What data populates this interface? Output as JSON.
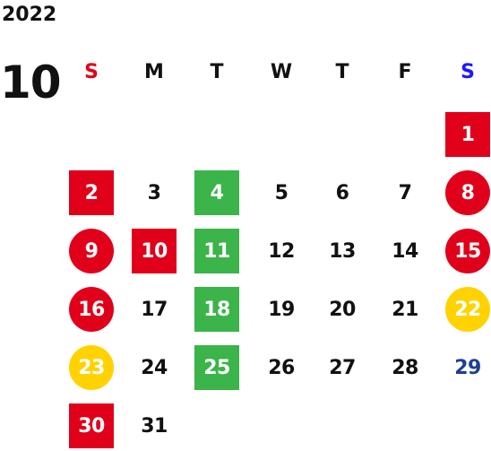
{
  "year": "2022",
  "month": "10",
  "colors": {
    "text": "#111111",
    "holiday_red": "#e0001a",
    "event_green": "#3bb44a",
    "highlight_yellow": "#ffd200",
    "sunday_red": "#e0001a",
    "saturday_blue": "#1a1aff",
    "navy_text": "#1f3f8f"
  },
  "weekdays": [
    {
      "label": "S",
      "color": "#e0001a"
    },
    {
      "label": "M",
      "color": "#111111"
    },
    {
      "label": "T",
      "color": "#111111"
    },
    {
      "label": "W",
      "color": "#111111"
    },
    {
      "label": "T",
      "color": "#111111"
    },
    {
      "label": "F",
      "color": "#111111"
    },
    {
      "label": "S",
      "color": "#1a1aff"
    }
  ],
  "days": [
    {
      "day": "1",
      "marker": "red-square",
      "text_color": "#ffffff"
    },
    {
      "day": "2",
      "marker": "red-square",
      "text_color": "#ffffff"
    },
    {
      "day": "3",
      "marker": "none",
      "text_color": "#111111"
    },
    {
      "day": "4",
      "marker": "green-square",
      "text_color": "#ffffff"
    },
    {
      "day": "5",
      "marker": "none",
      "text_color": "#111111"
    },
    {
      "day": "6",
      "marker": "none",
      "text_color": "#111111"
    },
    {
      "day": "7",
      "marker": "none",
      "text_color": "#111111"
    },
    {
      "day": "8",
      "marker": "red-circle",
      "text_color": "#ffffff"
    },
    {
      "day": "9",
      "marker": "red-circle",
      "text_color": "#ffffff"
    },
    {
      "day": "10",
      "marker": "red-square",
      "text_color": "#ffffff"
    },
    {
      "day": "11",
      "marker": "green-square",
      "text_color": "#ffffff"
    },
    {
      "day": "12",
      "marker": "none",
      "text_color": "#111111"
    },
    {
      "day": "13",
      "marker": "none",
      "text_color": "#111111"
    },
    {
      "day": "14",
      "marker": "none",
      "text_color": "#111111"
    },
    {
      "day": "15",
      "marker": "red-circle",
      "text_color": "#ffffff"
    },
    {
      "day": "16",
      "marker": "red-circle",
      "text_color": "#ffffff"
    },
    {
      "day": "17",
      "marker": "none",
      "text_color": "#111111"
    },
    {
      "day": "18",
      "marker": "green-square",
      "text_color": "#ffffff"
    },
    {
      "day": "19",
      "marker": "none",
      "text_color": "#111111"
    },
    {
      "day": "20",
      "marker": "none",
      "text_color": "#111111"
    },
    {
      "day": "21",
      "marker": "none",
      "text_color": "#111111"
    },
    {
      "day": "22",
      "marker": "yellow-circle",
      "text_color": "#ffffff"
    },
    {
      "day": "23",
      "marker": "yellow-circle",
      "text_color": "#ffffff"
    },
    {
      "day": "24",
      "marker": "none",
      "text_color": "#111111"
    },
    {
      "day": "25",
      "marker": "green-square",
      "text_color": "#ffffff"
    },
    {
      "day": "26",
      "marker": "none",
      "text_color": "#111111"
    },
    {
      "day": "27",
      "marker": "none",
      "text_color": "#111111"
    },
    {
      "day": "28",
      "marker": "none",
      "text_color": "#111111"
    },
    {
      "day": "29",
      "marker": "none",
      "text_color": "#1f3f8f"
    },
    {
      "day": "30",
      "marker": "red-square",
      "text_color": "#ffffff"
    },
    {
      "day": "31",
      "marker": "none",
      "text_color": "#111111"
    }
  ]
}
